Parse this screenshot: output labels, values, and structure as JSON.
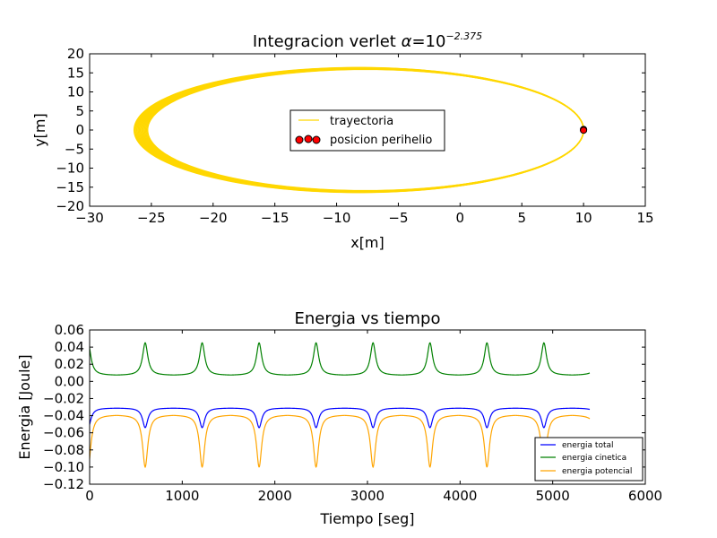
{
  "chart_data": [
    {
      "type": "line",
      "title": "Integracion verlet",
      "title_math": {
        "alpha_symbol": "α",
        "equals": "=",
        "base": "10",
        "exponent": "−2.375"
      },
      "xlabel": "x[m]",
      "ylabel": "y[m]",
      "xlim": [
        -30,
        15
      ],
      "ylim": [
        -20,
        20
      ],
      "xticks": [
        -30,
        -25,
        -20,
        -15,
        -10,
        -5,
        0,
        5,
        10,
        15
      ],
      "xtick_labels": [
        "−30",
        "−25",
        "−20",
        "−15",
        "−10",
        "−5",
        "0",
        "5",
        "10",
        "15"
      ],
      "yticks": [
        -20,
        -15,
        -10,
        -5,
        0,
        5,
        10,
        15,
        20
      ],
      "ytick_labels": [
        "−20",
        "−15",
        "−10",
        "−5",
        "0",
        "5",
        "10",
        "15",
        "20"
      ],
      "grid": false,
      "legend_position": "center",
      "series": [
        {
          "name": "trayectoria",
          "kind": "orbit",
          "color": "#FFD700",
          "perihelion_x": 10,
          "aphelion_x_range": [
            -26.4,
            -25.3
          ],
          "semi_minor_axis_range": [
            15.9,
            16.4
          ],
          "center_x": -8.2
        },
        {
          "name": "posicion perihelio",
          "kind": "scatter",
          "marker_color": "#FF0000",
          "points": [
            [
              10,
              0.15
            ],
            [
              10,
              0.05
            ],
            [
              10,
              -0.05
            ]
          ]
        }
      ]
    },
    {
      "type": "line",
      "title": "Energia vs tiempo",
      "xlabel": "Tiempo [seg]",
      "ylabel": "Energia [Joule]",
      "xlim": [
        0,
        6000
      ],
      "ylim": [
        -0.12,
        0.06
      ],
      "xticks": [
        0,
        1000,
        2000,
        3000,
        4000,
        5000,
        6000
      ],
      "xtick_labels": [
        "0",
        "1000",
        "2000",
        "3000",
        "4000",
        "5000",
        "6000"
      ],
      "yticks": [
        -0.12,
        -0.1,
        -0.08,
        -0.06,
        -0.04,
        -0.02,
        0.0,
        0.02,
        0.04,
        0.06
      ],
      "ytick_labels": [
        "−0.12",
        "−0.10",
        "−0.08",
        "−0.06",
        "−0.04",
        "−0.02",
        "0.00",
        "0.02",
        "0.04",
        "0.06"
      ],
      "grid": false,
      "legend_position": "lower right",
      "period": 615,
      "first_peak_time": 600,
      "t_end": 5400,
      "series": [
        {
          "name": "energia total",
          "color": "#0000FF",
          "baseline": -0.031,
          "peak": -0.054
        },
        {
          "name": "energia cinetica",
          "color": "#008000",
          "baseline": 0.007,
          "peak": 0.045
        },
        {
          "name": "energia potencial",
          "color": "#FFA500",
          "baseline": -0.039,
          "peak": -0.1
        }
      ]
    }
  ]
}
